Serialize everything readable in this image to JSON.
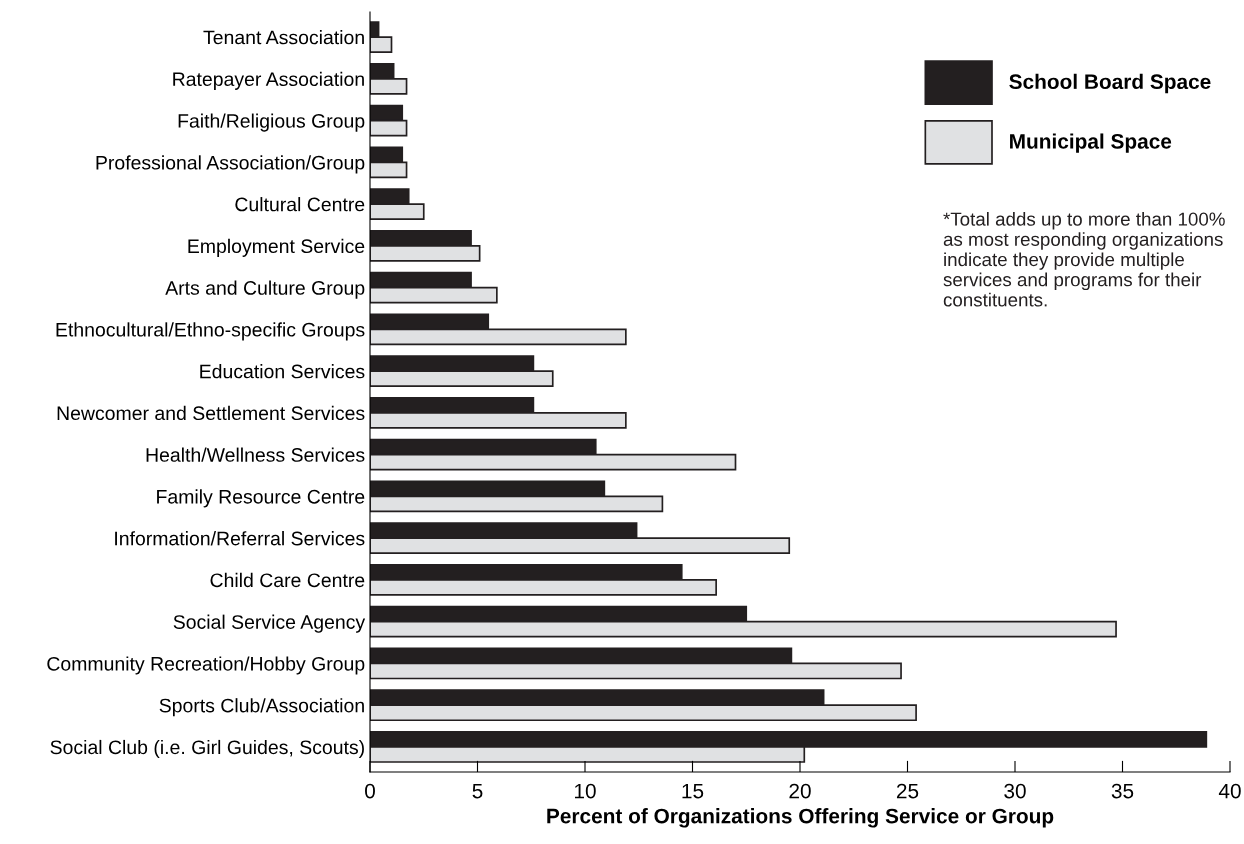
{
  "chart_data": {
    "type": "bar",
    "orientation": "horizontal",
    "xlabel": "Percent of Organizations Offering Service or Group",
    "categories": [
      "Tenant Association",
      "Ratepayer Association",
      "Faith/Religious Group",
      "Professional Association/Group",
      "Cultural Centre",
      "Employment Service",
      "Arts and Culture Group",
      "Ethnocultural/Ethno-specific Groups",
      "Education Services",
      "Newcomer and Settlement Services",
      "Health/Wellness Services",
      "Family Resource Centre",
      "Information/Referral Services",
      "Child Care Centre",
      "Social Service Agency",
      "Community Recreation/Hobby Group",
      "Sports Club/Association",
      "Social Club (i.e. Girl Guides, Scouts)"
    ],
    "series": [
      {
        "name": "School Board Space",
        "color": "#231f20",
        "values": [
          0.4,
          1.1,
          1.5,
          1.5,
          1.8,
          4.7,
          4.7,
          5.5,
          7.6,
          7.6,
          10.5,
          10.9,
          12.4,
          14.5,
          17.5,
          19.6,
          21.1,
          38.9
        ]
      },
      {
        "name": "Municipal Space",
        "color": "#e0e1e3",
        "values": [
          1.0,
          1.7,
          1.7,
          1.7,
          2.5,
          5.1,
          5.9,
          11.9,
          8.5,
          11.9,
          17.0,
          13.6,
          19.5,
          16.1,
          34.7,
          24.7,
          25.4,
          20.2
        ]
      }
    ],
    "xlim": [
      0,
      40
    ],
    "xticks": [
      0,
      5,
      10,
      15,
      20,
      25,
      30,
      35,
      40
    ],
    "grid": false,
    "legend": "top right",
    "annotations": [
      "*Total adds up to more than 100% as most responding organizations indicate they provide multiple services and programs for their constituents."
    ]
  }
}
